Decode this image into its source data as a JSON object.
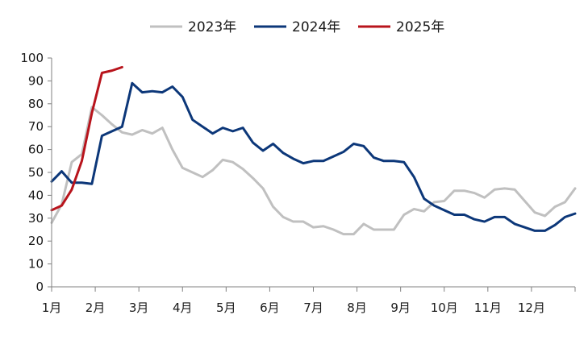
{
  "chart_data": {
    "type": "line",
    "title": "",
    "xlabel": "",
    "ylabel": "",
    "ylim": [
      0,
      100
    ],
    "yticks": [
      0,
      10,
      20,
      30,
      40,
      50,
      60,
      70,
      80,
      90,
      100
    ],
    "xlim": [
      0,
      52
    ],
    "month_labels": [
      "1月",
      "2月",
      "3月",
      "4月",
      "5月",
      "6月",
      "7月",
      "8月",
      "9月",
      "10月",
      "11月",
      "12月"
    ],
    "legend_position": "top-center",
    "grid": false,
    "series": [
      {
        "name": "2023年",
        "color": "#c0c0c0",
        "values": [
          [
            0,
            28
          ],
          [
            1,
            36
          ],
          [
            2,
            54.5
          ],
          [
            3,
            58
          ],
          [
            4,
            78.5
          ],
          [
            5,
            75
          ],
          [
            6,
            71
          ],
          [
            7,
            67.5
          ],
          [
            8,
            66.5
          ],
          [
            9,
            68.5
          ],
          [
            10,
            67
          ],
          [
            11,
            69.5
          ],
          [
            12,
            60
          ],
          [
            13,
            52
          ],
          [
            14,
            50
          ],
          [
            15,
            48
          ],
          [
            16,
            51
          ],
          [
            17,
            55.5
          ],
          [
            18,
            54.5
          ],
          [
            19,
            51.5
          ],
          [
            20,
            47.5
          ],
          [
            21,
            43
          ],
          [
            22,
            35
          ],
          [
            23,
            30.5
          ],
          [
            24,
            28.5
          ],
          [
            25,
            28.5
          ],
          [
            26,
            26
          ],
          [
            27,
            26.5
          ],
          [
            28,
            25
          ],
          [
            29,
            23
          ],
          [
            30,
            23
          ],
          [
            31,
            27.5
          ],
          [
            32,
            25
          ],
          [
            33,
            25
          ],
          [
            34,
            25
          ],
          [
            35,
            31.5
          ],
          [
            36,
            34
          ],
          [
            37,
            33
          ],
          [
            38,
            37
          ],
          [
            39,
            37.5
          ],
          [
            40,
            42
          ],
          [
            41,
            42
          ],
          [
            42,
            41
          ],
          [
            43,
            39
          ],
          [
            44,
            42.5
          ],
          [
            45,
            43
          ],
          [
            46,
            42.5
          ],
          [
            47,
            37.5
          ],
          [
            48,
            32.5
          ],
          [
            49,
            31
          ],
          [
            50,
            35
          ],
          [
            51,
            37
          ],
          [
            52,
            43
          ]
        ]
      },
      {
        "name": "2024年",
        "color": "#0c3779",
        "values": [
          [
            0,
            46
          ],
          [
            1,
            50.5
          ],
          [
            2,
            45.5
          ],
          [
            3,
            45.5
          ],
          [
            4,
            45
          ],
          [
            5,
            66
          ],
          [
            6,
            68
          ],
          [
            7,
            70
          ],
          [
            8,
            89
          ],
          [
            9,
            85
          ],
          [
            10,
            85.5
          ],
          [
            11,
            85
          ],
          [
            12,
            87.5
          ],
          [
            13,
            83
          ],
          [
            14,
            73
          ],
          [
            15,
            70
          ],
          [
            16,
            67
          ],
          [
            17,
            69.5
          ],
          [
            18,
            68
          ],
          [
            19,
            69.5
          ],
          [
            20,
            63
          ],
          [
            21,
            59.5
          ],
          [
            22,
            62.5
          ],
          [
            23,
            58.5
          ],
          [
            24,
            56
          ],
          [
            25,
            54
          ],
          [
            26,
            55
          ],
          [
            27,
            55
          ],
          [
            28,
            57
          ],
          [
            29,
            59
          ],
          [
            30,
            62.5
          ],
          [
            31,
            61.5
          ],
          [
            32,
            56.5
          ],
          [
            33,
            55
          ],
          [
            34,
            55
          ],
          [
            35,
            54.5
          ],
          [
            36,
            48
          ],
          [
            37,
            38.5
          ],
          [
            38,
            35.5
          ],
          [
            39,
            33.5
          ],
          [
            40,
            31.5
          ],
          [
            41,
            31.5
          ],
          [
            42,
            29.5
          ],
          [
            43,
            28.5
          ],
          [
            44,
            30.5
          ],
          [
            45,
            30.5
          ],
          [
            46,
            27.5
          ],
          [
            47,
            26
          ],
          [
            48,
            24.5
          ],
          [
            49,
            24.5
          ],
          [
            50,
            27
          ],
          [
            51,
            30.5
          ],
          [
            52,
            32
          ]
        ]
      },
      {
        "name": "2025年",
        "color": "#b8141c",
        "values": [
          [
            0,
            33.5
          ],
          [
            1,
            35.5
          ],
          [
            2,
            42.5
          ],
          [
            3,
            55
          ],
          [
            4,
            76
          ],
          [
            5,
            93.5
          ],
          [
            6,
            94.5
          ],
          [
            7,
            96
          ]
        ]
      }
    ]
  }
}
